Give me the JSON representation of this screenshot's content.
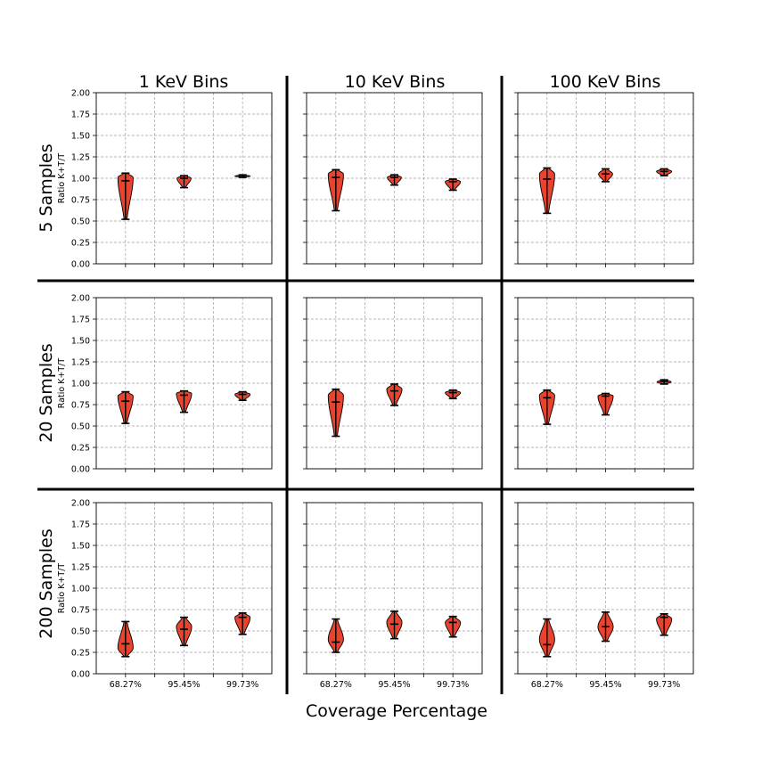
{
  "col_titles": [
    "1 KeV Bins",
    "10 KeV Bins",
    "100 KeV Bins"
  ],
  "row_titles": [
    "5 Samples",
    "20 Samples",
    "200 Samples"
  ],
  "ylabel": "Ratio K+T/T",
  "xlabel": "Coverage Percentage",
  "colors": {
    "violin_fill": "#e8432f",
    "violin_edge": "#000000",
    "grid": "#a0a0a0",
    "separator": "#000000"
  },
  "chart_data": {
    "type": "violin",
    "categories": [
      "68.27%",
      "95.45%",
      "99.73%"
    ],
    "ylim": [
      0,
      2
    ],
    "yticks": [
      "0.00",
      "0.25",
      "0.50",
      "0.75",
      "1.00",
      "1.25",
      "1.50",
      "1.75",
      "2.00"
    ],
    "grid": true,
    "panels": [
      {
        "row": "5 Samples",
        "col": "1 KeV Bins",
        "violins": [
          {
            "min": 0.52,
            "max": 1.06,
            "median": 0.97,
            "peak": 1.01,
            "width": 0.26
          },
          {
            "min": 0.89,
            "max": 1.03,
            "median": 1.0,
            "peak": 1.0,
            "width": 0.24
          },
          {
            "min": 1.01,
            "max": 1.04,
            "median": 1.02,
            "peak": 1.025,
            "width": 0.26
          }
        ]
      },
      {
        "row": "5 Samples",
        "col": "10 KeV Bins",
        "violins": [
          {
            "min": 0.62,
            "max": 1.1,
            "median": 1.01,
            "peak": 1.05,
            "width": 0.26
          },
          {
            "min": 0.92,
            "max": 1.04,
            "median": 1.01,
            "peak": 1.01,
            "width": 0.24
          },
          {
            "min": 0.86,
            "max": 0.99,
            "median": 0.96,
            "peak": 0.96,
            "width": 0.26
          }
        ]
      },
      {
        "row": "5 Samples",
        "col": "100 KeV Bins",
        "violins": [
          {
            "min": 0.59,
            "max": 1.12,
            "median": 0.99,
            "peak": 1.05,
            "width": 0.26
          },
          {
            "min": 0.96,
            "max": 1.11,
            "median": 1.05,
            "peak": 1.05,
            "width": 0.24
          },
          {
            "min": 1.03,
            "max": 1.11,
            "median": 1.08,
            "peak": 1.08,
            "width": 0.26
          }
        ]
      },
      {
        "row": "20 Samples",
        "col": "1 KeV Bins",
        "violins": [
          {
            "min": 0.53,
            "max": 0.9,
            "median": 0.79,
            "peak": 0.85,
            "width": 0.26
          },
          {
            "min": 0.66,
            "max": 0.91,
            "median": 0.86,
            "peak": 0.88,
            "width": 0.26
          },
          {
            "min": 0.8,
            "max": 0.9,
            "median": 0.87,
            "peak": 0.87,
            "width": 0.26
          }
        ]
      },
      {
        "row": "20 Samples",
        "col": "10 KeV Bins",
        "violins": [
          {
            "min": 0.38,
            "max": 0.93,
            "median": 0.78,
            "peak": 0.86,
            "width": 0.26
          },
          {
            "min": 0.74,
            "max": 0.99,
            "median": 0.91,
            "peak": 0.93,
            "width": 0.26
          },
          {
            "min": 0.82,
            "max": 0.92,
            "median": 0.89,
            "peak": 0.89,
            "width": 0.26
          }
        ]
      },
      {
        "row": "20 Samples",
        "col": "100 KeV Bins",
        "violins": [
          {
            "min": 0.52,
            "max": 0.92,
            "median": 0.83,
            "peak": 0.86,
            "width": 0.26
          },
          {
            "min": 0.63,
            "max": 0.88,
            "median": 0.85,
            "peak": 0.85,
            "width": 0.26
          },
          {
            "min": 0.99,
            "max": 1.04,
            "median": 1.02,
            "peak": 1.015,
            "width": 0.24
          }
        ]
      },
      {
        "row": "200 Samples",
        "col": "1 KeV Bins",
        "violins": [
          {
            "min": 0.2,
            "max": 0.61,
            "median": 0.35,
            "peak": 0.3,
            "width": 0.26
          },
          {
            "min": 0.33,
            "max": 0.66,
            "median": 0.52,
            "peak": 0.55,
            "width": 0.26
          },
          {
            "min": 0.46,
            "max": 0.71,
            "median": 0.66,
            "peak": 0.66,
            "width": 0.26
          }
        ]
      },
      {
        "row": "200 Samples",
        "col": "10 KeV Bins",
        "violins": [
          {
            "min": 0.25,
            "max": 0.64,
            "median": 0.37,
            "peak": 0.4,
            "width": 0.26
          },
          {
            "min": 0.41,
            "max": 0.73,
            "median": 0.58,
            "peak": 0.6,
            "width": 0.26
          },
          {
            "min": 0.43,
            "max": 0.67,
            "median": 0.6,
            "peak": 0.6,
            "width": 0.26
          }
        ]
      },
      {
        "row": "200 Samples",
        "col": "100 KeV Bins",
        "violins": [
          {
            "min": 0.2,
            "max": 0.64,
            "median": 0.34,
            "peak": 0.4,
            "width": 0.26
          },
          {
            "min": 0.38,
            "max": 0.72,
            "median": 0.55,
            "peak": 0.55,
            "width": 0.26
          },
          {
            "min": 0.45,
            "max": 0.7,
            "median": 0.66,
            "peak": 0.64,
            "width": 0.26
          }
        ]
      }
    ]
  }
}
